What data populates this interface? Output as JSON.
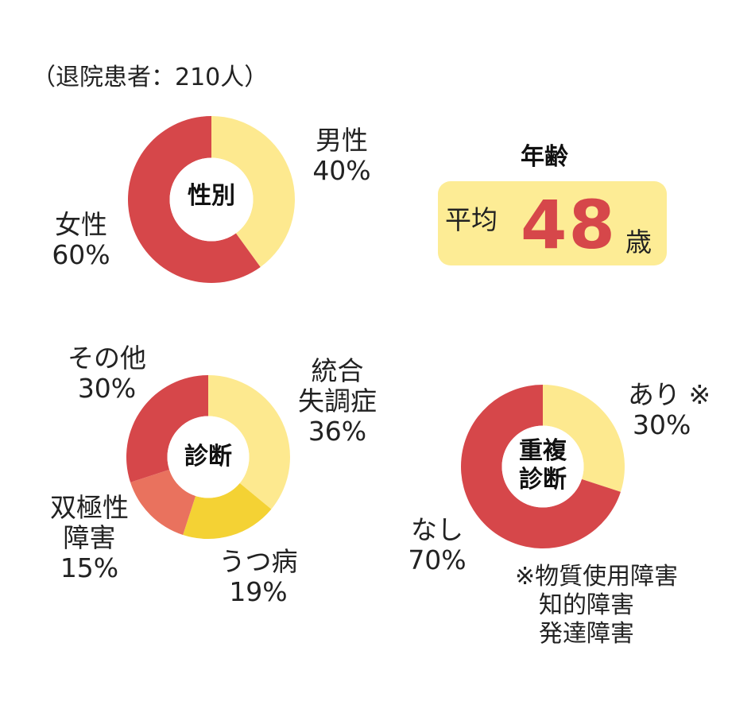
{
  "note": "（退院患者：210人）",
  "age": {
    "title": "年齢",
    "prefix": "平均",
    "value": "48",
    "unit": "歳",
    "box_color": "#fdec95",
    "value_color": "#d6474a"
  },
  "footnote": {
    "mark": "※",
    "lines": [
      "物質使用障害",
      "知的障害",
      "発達障害"
    ]
  },
  "colors": {
    "red": "#d6474a",
    "light_yellow": "#fde98f",
    "yellow": "#f4d234",
    "salmon": "#e9725e"
  },
  "chart_data": [
    {
      "type": "pie",
      "title": "性別",
      "unit": "%",
      "slices": [
        {
          "label_lines": [
            "男性"
          ],
          "value": 40,
          "color": "#fde98f"
        },
        {
          "label_lines": [
            "女性"
          ],
          "value": 60,
          "color": "#d6474a"
        }
      ]
    },
    {
      "type": "pie",
      "title": "診断",
      "unit": "%",
      "slices": [
        {
          "label_lines": [
            "統合",
            "失調症"
          ],
          "value": 36,
          "color": "#fde98f"
        },
        {
          "label_lines": [
            "うつ病"
          ],
          "value": 19,
          "color": "#f4d234"
        },
        {
          "label_lines": [
            "双極性",
            "障害"
          ],
          "value": 15,
          "color": "#e9725e"
        },
        {
          "label_lines": [
            "その他"
          ],
          "value": 30,
          "color": "#d6474a"
        }
      ]
    },
    {
      "type": "pie",
      "title_lines": [
        "重複",
        "診断"
      ],
      "unit": "%",
      "slices": [
        {
          "label_lines": [
            "あり ※"
          ],
          "value": 30,
          "color": "#fde98f"
        },
        {
          "label_lines": [
            "なし"
          ],
          "value": 70,
          "color": "#d6474a"
        }
      ]
    }
  ]
}
